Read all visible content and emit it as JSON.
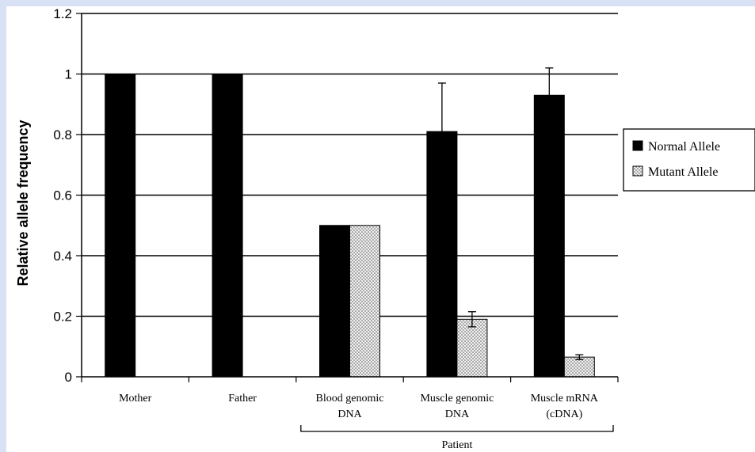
{
  "chart_data": {
    "type": "bar",
    "ylabel": "Relative allele frequency",
    "xlabel": "",
    "ylim": [
      0,
      1.2
    ],
    "yticks": [
      "0",
      "0.2",
      "0.4",
      "0.6",
      "0.8",
      "1",
      "1.2"
    ],
    "grid": true,
    "legend_position": "right",
    "categories": [
      {
        "lines": [
          "Mother"
        ]
      },
      {
        "lines": [
          "Father"
        ]
      },
      {
        "lines": [
          "Blood genomic",
          "DNA"
        ]
      },
      {
        "lines": [
          "Muscle genomic",
          "DNA"
        ]
      },
      {
        "lines": [
          "Muscle mRNA",
          "(cDNA)"
        ]
      }
    ],
    "group_label": "Patient",
    "series": [
      {
        "name": "Normal Allele",
        "color": "#000000",
        "pattern": "solid",
        "values": [
          1,
          1,
          0.5,
          0.81,
          0.93
        ],
        "error_plus": [
          0,
          0,
          0,
          0.16,
          0.09
        ]
      },
      {
        "name": "Mutant Allele",
        "color": "#d9d9d9",
        "pattern": "dotted",
        "values": [
          null,
          null,
          0.5,
          0.19,
          0.065
        ],
        "error_plus": [
          0,
          0,
          0,
          0.025,
          0.008
        ],
        "error_minus": [
          0,
          0,
          0,
          0.025,
          0.008
        ]
      }
    ]
  }
}
